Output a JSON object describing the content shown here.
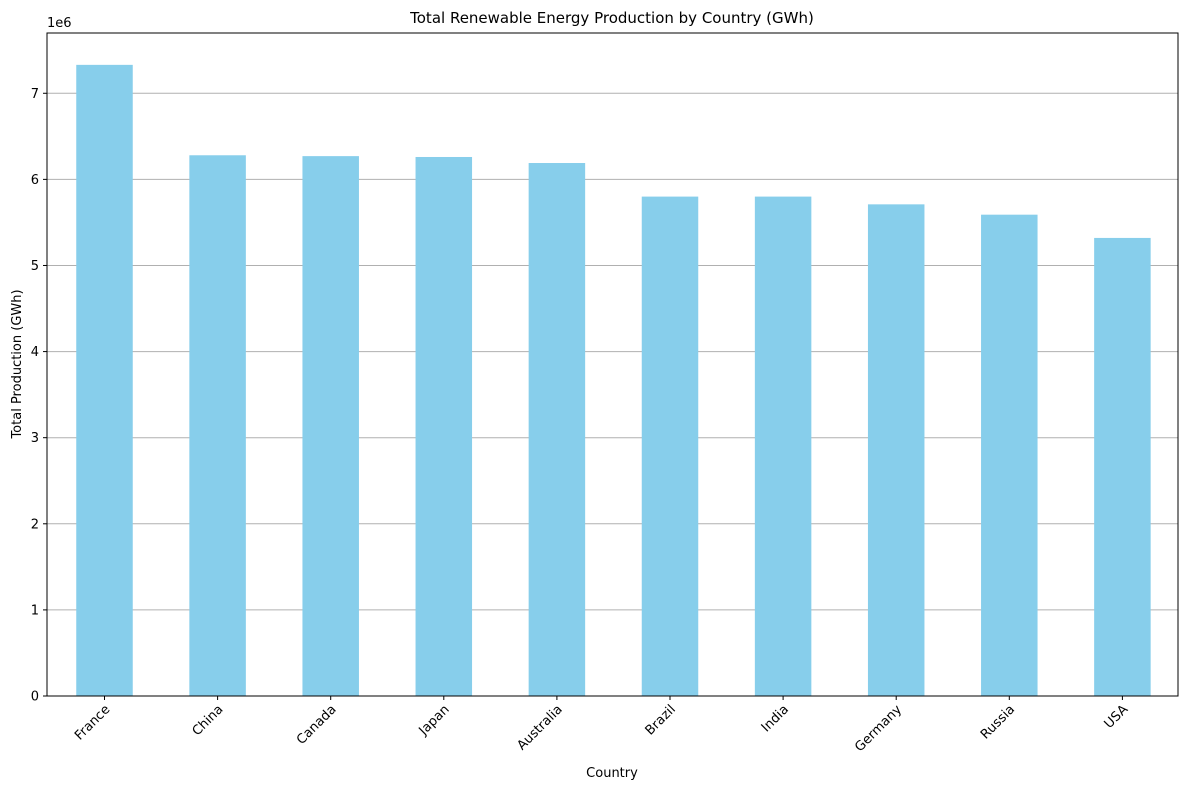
{
  "chart_data": {
    "type": "bar",
    "title": "Total Renewable Energy Production by Country (GWh)",
    "xlabel": "Country",
    "ylabel": "Total Production (GWh)",
    "y_scale_label": "1e6",
    "y_tick_labels": [
      "0",
      "1",
      "2",
      "3",
      "4",
      "5",
      "6",
      "7"
    ],
    "y_tick_values": [
      0,
      1000000,
      2000000,
      3000000,
      4000000,
      5000000,
      6000000,
      7000000
    ],
    "ylim": [
      0,
      7700000
    ],
    "grid": "horizontal",
    "categories": [
      "France",
      "China",
      "Canada",
      "Japan",
      "Australia",
      "Brazil",
      "India",
      "Germany",
      "Russia",
      "USA"
    ],
    "values": [
      7330000,
      6280000,
      6270000,
      6260000,
      6190000,
      5800000,
      5800000,
      5710000,
      5590000,
      5320000
    ],
    "bar_color": "#87CEEB",
    "grid_color": "#b0b0b0"
  }
}
